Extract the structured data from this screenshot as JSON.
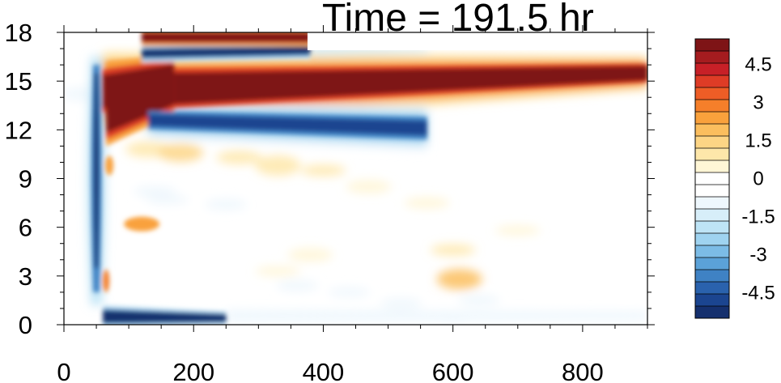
{
  "chart_data": {
    "type": "heatmap",
    "title": "Time = 191.5 hr",
    "xlabel": "",
    "ylabel": "",
    "xlim": [
      0,
      900
    ],
    "ylim": [
      0,
      18
    ],
    "x_ticks": [
      "0",
      "200",
      "400",
      "600",
      "800"
    ],
    "y_ticks": [
      "0",
      "3",
      "6",
      "9",
      "12",
      "15",
      "18"
    ],
    "colorbar": {
      "range": [
        -5.5,
        5.5
      ],
      "step": 0.5,
      "labels": [
        "4.5",
        "3",
        "1.5",
        "0",
        "-1.5",
        "-3",
        "-4.5"
      ],
      "colors": [
        "#7e1416",
        "#a51c1f",
        "#c72027",
        "#de3c26",
        "#ee5d26",
        "#f57f2a",
        "#f9a13c",
        "#fbbe5e",
        "#fdd585",
        "#fee7aa",
        "#fff6d6",
        "#ffffff",
        "#ffffff",
        "#eef7fd",
        "#d7eef9",
        "#bee4f6",
        "#9fd3f0",
        "#7cbce6",
        "#5ba2d8",
        "#3f82c4",
        "#2a62ad",
        "#1b4590",
        "#15306e"
      ]
    },
    "features": [
      {
        "kind": "warm_band",
        "x_range": [
          60,
          900
        ],
        "y_center_start": 14.5,
        "y_center_end": 15.6,
        "peak": 5.5
      },
      {
        "kind": "cold_band",
        "x_range": [
          110,
          560
        ],
        "y_center": 12.3,
        "peak": -5.0
      },
      {
        "kind": "cold_band",
        "x_range": [
          120,
          380
        ],
        "y_center": 16.8,
        "peak": -5.5
      },
      {
        "kind": "warm_band",
        "x_range": [
          120,
          380
        ],
        "y_center": 17.6,
        "peak": 5.0
      },
      {
        "kind": "cold_band",
        "x_range": [
          60,
          240
        ],
        "y_center": 0.5,
        "peak": -5.5
      },
      {
        "kind": "cold_column",
        "x_center": 55,
        "y_range": [
          1.5,
          15.5
        ],
        "peak": -5.5
      },
      {
        "kind": "warm_patch",
        "x_center": 120,
        "y_center": 6.2,
        "peak": 2.5
      }
    ]
  }
}
